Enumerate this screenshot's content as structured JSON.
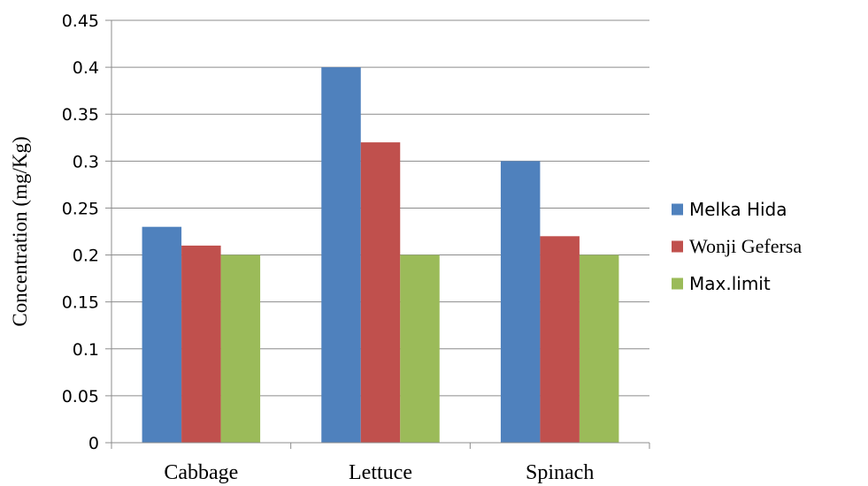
{
  "chart_data": {
    "type": "bar",
    "title": "",
    "xlabel": "",
    "ylabel": "Concentration (mg/Kg)",
    "categories": [
      "Cabbage",
      "Lettuce",
      "Spinach"
    ],
    "series": [
      {
        "name": "Melka Hida",
        "values": [
          0.23,
          0.4,
          0.3
        ],
        "color": "#4F81BD"
      },
      {
        "name": "Wonji Gefersa",
        "values": [
          0.21,
          0.32,
          0.22
        ],
        "color": "#C0504D"
      },
      {
        "name": "Max.limit",
        "values": [
          0.2,
          0.2,
          0.2
        ],
        "color": "#9BBB59"
      }
    ],
    "ylim": [
      0,
      0.45
    ],
    "yticks": [
      0,
      0.05,
      0.1,
      0.15,
      0.2,
      0.25,
      0.3,
      0.35,
      0.4,
      0.45
    ],
    "ytick_labels": [
      "0",
      "0.05",
      "0.1",
      "0.15",
      "0.2",
      "0.25",
      "0.3",
      "0.35",
      "0.4",
      "0.45"
    ],
    "grid": "horizontal",
    "legend_position": "right"
  }
}
